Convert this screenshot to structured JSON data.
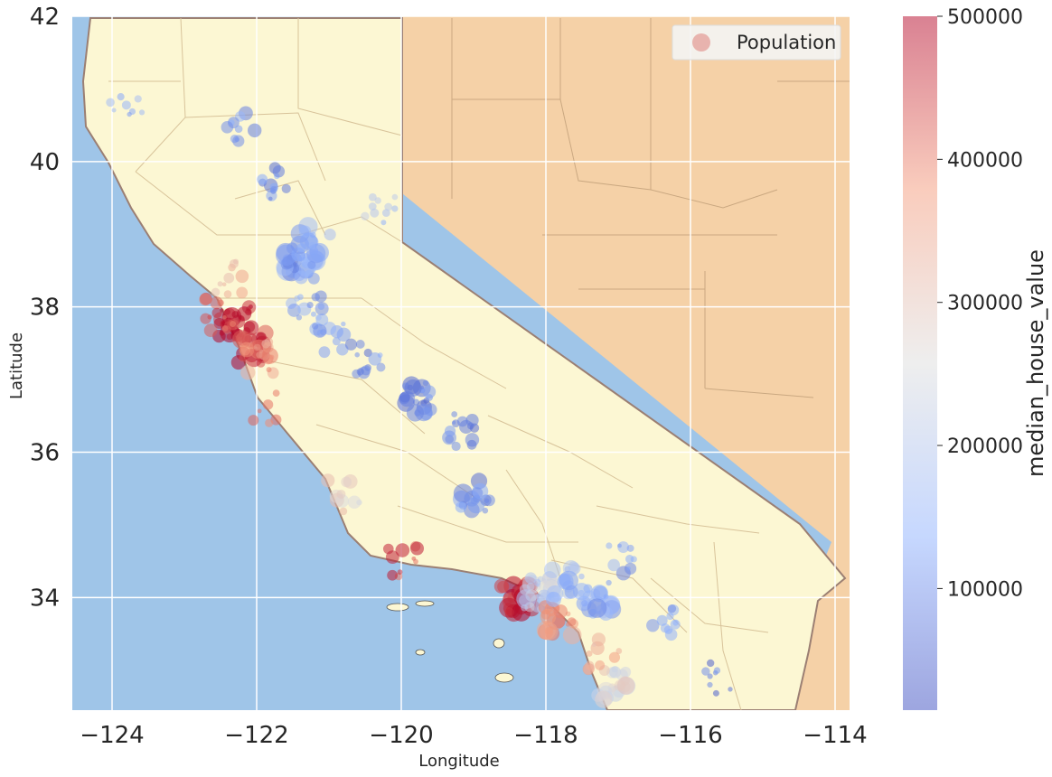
{
  "chart_data": {
    "type": "scatter",
    "title": "",
    "xlabel": "Longitude",
    "ylabel": "Latitude",
    "xlim": [
      -124.55,
      -113.8
    ],
    "ylim": [
      32.45,
      42.0
    ],
    "xticks": [
      -124,
      -122,
      -120,
      -118,
      -116,
      -114
    ],
    "xtick_labels": [
      "−124",
      "−122",
      "−120",
      "−118",
      "−116",
      "−114"
    ],
    "yticks": [
      34,
      36,
      38,
      40,
      42
    ],
    "ytick_labels": [
      "34",
      "36",
      "38",
      "40",
      "42"
    ],
    "grid": true,
    "background": "map of California with county borders; ocean and neighbouring state shown",
    "colors": {
      "ocean": "#9fc5e8",
      "california": "#fcf7d3",
      "nevada": "#f5d1a7",
      "state_border": "#9b7f73",
      "county_border": "#d8c39a",
      "grid": "#ffffff"
    },
    "legend": {
      "position": "upper right",
      "entries": [
        "Population"
      ],
      "marker_color": "#e08a86"
    },
    "colorbar": {
      "label": "median_house_value",
      "range": [
        15000,
        500000
      ],
      "ticks": [
        100000,
        200000,
        300000,
        400000,
        500000
      ],
      "tick_labels": [
        "100000",
        "200000",
        "300000",
        "400000",
        "500000"
      ],
      "colormap": "coolwarm",
      "alpha": 0.5
    },
    "size_encoding": "population",
    "clusters": [
      {
        "lon": -122.3,
        "lat": 37.8,
        "value": 480000,
        "pop": 3,
        "count": 30
      },
      {
        "lon": -122.1,
        "lat": 37.45,
        "value": 470000,
        "pop": 3,
        "count": 24
      },
      {
        "lon": -122.5,
        "lat": 37.9,
        "value": 430000,
        "pop": 2,
        "count": 14
      },
      {
        "lon": -121.95,
        "lat": 37.3,
        "value": 360000,
        "pop": 3,
        "count": 16
      },
      {
        "lon": -121.9,
        "lat": 36.6,
        "value": 420000,
        "pop": 2,
        "count": 6
      },
      {
        "lon": -121.4,
        "lat": 38.6,
        "value": 120000,
        "pop": 4,
        "count": 26
      },
      {
        "lon": -121.2,
        "lat": 38.9,
        "value": 140000,
        "pop": 3,
        "count": 14
      },
      {
        "lon": -121.3,
        "lat": 37.95,
        "value": 130000,
        "pop": 2,
        "count": 14
      },
      {
        "lon": -121.0,
        "lat": 37.6,
        "value": 110000,
        "pop": 2,
        "count": 12
      },
      {
        "lon": -120.5,
        "lat": 37.3,
        "value": 100000,
        "pop": 2,
        "count": 12
      },
      {
        "lon": -119.8,
        "lat": 36.75,
        "value": 90000,
        "pop": 3,
        "count": 24
      },
      {
        "lon": -119.2,
        "lat": 36.3,
        "value": 90000,
        "pop": 2,
        "count": 14
      },
      {
        "lon": -119.0,
        "lat": 35.4,
        "value": 100000,
        "pop": 3,
        "count": 16
      },
      {
        "lon": -122.2,
        "lat": 40.5,
        "value": 110000,
        "pop": 2,
        "count": 10
      },
      {
        "lon": -121.8,
        "lat": 39.7,
        "value": 100000,
        "pop": 2,
        "count": 12
      },
      {
        "lon": -122.4,
        "lat": 38.4,
        "value": 320000,
        "pop": 2,
        "count": 10
      },
      {
        "lon": -120.8,
        "lat": 35.4,
        "value": 280000,
        "pop": 2,
        "count": 10
      },
      {
        "lon": -120.0,
        "lat": 34.5,
        "value": 450000,
        "pop": 2,
        "count": 10
      },
      {
        "lon": -118.4,
        "lat": 34.0,
        "value": 470000,
        "pop": 3,
        "count": 28
      },
      {
        "lon": -118.1,
        "lat": 34.05,
        "value": 220000,
        "pop": 3,
        "count": 26
      },
      {
        "lon": -117.8,
        "lat": 33.7,
        "value": 380000,
        "pop": 3,
        "count": 20
      },
      {
        "lon": -117.3,
        "lat": 34.0,
        "value": 130000,
        "pop": 3,
        "count": 22
      },
      {
        "lon": -117.7,
        "lat": 34.2,
        "value": 160000,
        "pop": 3,
        "count": 16
      },
      {
        "lon": -117.1,
        "lat": 32.8,
        "value": 260000,
        "pop": 3,
        "count": 20
      },
      {
        "lon": -117.2,
        "lat": 33.2,
        "value": 330000,
        "pop": 2,
        "count": 12
      },
      {
        "lon": -116.3,
        "lat": 33.7,
        "value": 140000,
        "pop": 2,
        "count": 10
      },
      {
        "lon": -117.0,
        "lat": 34.55,
        "value": 120000,
        "pop": 2,
        "count": 10
      },
      {
        "lon": -123.8,
        "lat": 40.8,
        "value": 150000,
        "pop": 1,
        "count": 8
      },
      {
        "lon": -120.3,
        "lat": 39.3,
        "value": 180000,
        "pop": 1,
        "count": 10
      },
      {
        "lon": -115.6,
        "lat": 32.9,
        "value": 80000,
        "pop": 1,
        "count": 8
      }
    ]
  }
}
